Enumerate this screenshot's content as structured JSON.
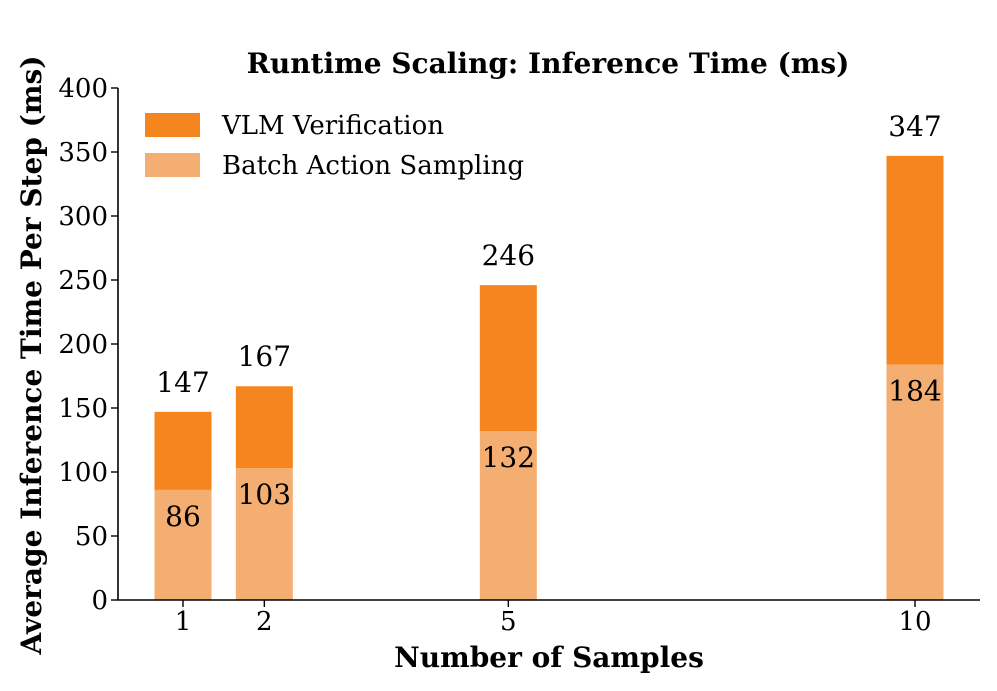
{
  "chart_data": {
    "type": "bar",
    "stacked": true,
    "title": "Runtime Scaling: Inference Time (ms)",
    "xlabel": "Number of Samples",
    "ylabel": "Average Inference Time Per Step (ms)",
    "x": [
      1,
      2,
      5,
      10
    ],
    "ylim": [
      0,
      400
    ],
    "yticks": [
      0,
      50,
      100,
      150,
      200,
      250,
      300,
      350,
      400
    ],
    "legend_position": "top-left",
    "grid": false,
    "series": [
      {
        "name": "Batch Action Sampling",
        "color": "#f5ae72",
        "values": [
          86,
          103,
          132,
          184
        ]
      },
      {
        "name": "VLM Verification",
        "color": "#f5851e",
        "values": [
          61,
          64,
          114,
          163
        ]
      }
    ],
    "totals": [
      147,
      167,
      246,
      347
    ],
    "legend_order": [
      "VLM Verification",
      "Batch Action Sampling"
    ]
  }
}
